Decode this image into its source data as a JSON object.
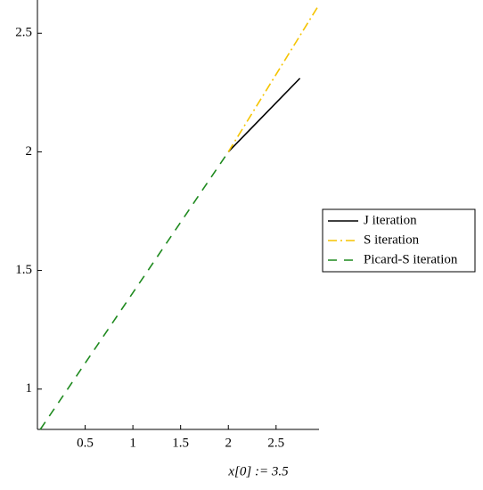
{
  "chart_data": {
    "type": "line",
    "x_label": "x[0] := 3.5",
    "series": [
      {
        "name": "J iteration",
        "color": "#000000",
        "dash": "solid",
        "x": [
          2,
          2.75
        ],
        "values": [
          2,
          2.31
        ]
      },
      {
        "name": "S iteration",
        "color": "#f5c400",
        "dash": "dashdot",
        "x": [
          2,
          2.95
        ],
        "values": [
          2,
          2.62
        ]
      },
      {
        "name": "Picard-S iteration",
        "color": "#1f8a1f",
        "dash": "dashed",
        "x": [
          0.03,
          2
        ],
        "values": [
          0.83,
          2
        ]
      }
    ],
    "xlim": [
      0,
      2.95
    ],
    "ylim": [
      0.83,
      2.64
    ],
    "xticks": [
      0.5,
      1,
      1.5,
      2,
      2.5
    ],
    "yticks": [
      1,
      1.5,
      2,
      2.5
    ],
    "legend": "right"
  }
}
